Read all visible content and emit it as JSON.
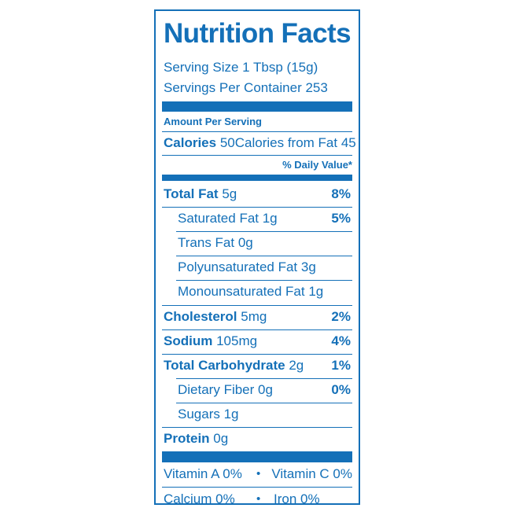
{
  "label": {
    "title": "Nutrition Facts",
    "serving_size": "Serving Size 1 Tbsp (15g)",
    "servings_per_container": "Servings Per Container 253",
    "amount_per_serving": "Amount Per Serving",
    "calories_label": "Calories",
    "calories_value": "50",
    "calories_from_fat": "Calories from Fat 45",
    "daily_value_header": "% Daily Value*"
  },
  "nutrients": [
    {
      "name": "Total Fat",
      "amount": "5g",
      "dv": "8%"
    },
    {
      "name": "Saturated Fat 1g",
      "dv": "5%"
    },
    {
      "name": "Trans Fat 0g",
      "dv": ""
    },
    {
      "name": "Polyunsaturated Fat 3g",
      "dv": ""
    },
    {
      "name": "Monounsaturated Fat 1g",
      "dv": ""
    },
    {
      "name": "Cholesterol",
      "amount": "5mg",
      "dv": "2%"
    },
    {
      "name": "Sodium",
      "amount": "105mg",
      "dv": "4%"
    },
    {
      "name": "Total Carbohydrate",
      "amount": "2g",
      "dv": "1%"
    },
    {
      "name": "Dietary Fiber 0g",
      "dv": "0%"
    },
    {
      "name": "Sugars 1g",
      "dv": ""
    },
    {
      "name": "Protein",
      "amount": "0g",
      "dv": ""
    }
  ],
  "vitamins": {
    "row1_left": "Vitamin A 0%",
    "row1_right": "Vitamin C 0%",
    "row2_left": "Calcium 0%",
    "row2_right": "Iron 0%",
    "separator": "•"
  },
  "colors": {
    "label_blue": "#1470b8",
    "background": "#ffffff"
  }
}
